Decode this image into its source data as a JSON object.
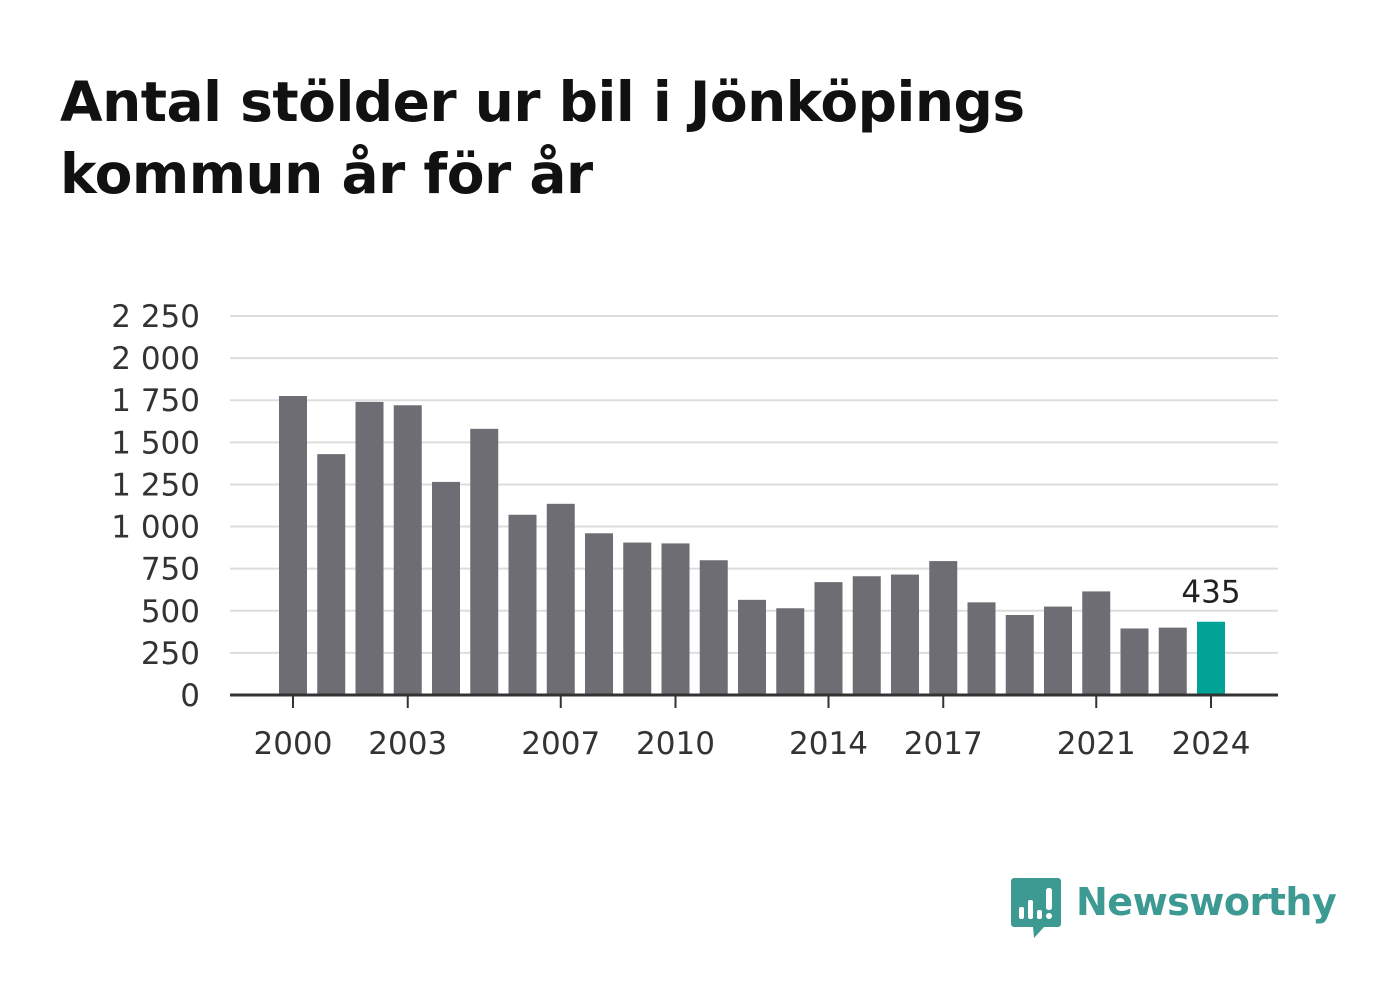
{
  "title": "Antal stölder ur bil i Jönköpings kommun år för år",
  "brand": {
    "name": "Newsworthy",
    "icon": "newsworthy-logo-icon",
    "color": "#3d9a92"
  },
  "colors": {
    "bar": "#6e6d73",
    "highlight": "#00a396",
    "grid": "#dddddd",
    "axis": "#333333"
  },
  "chart_data": {
    "type": "bar",
    "title": "Antal stölder ur bil i Jönköpings kommun år för år",
    "xlabel": "",
    "ylabel": "",
    "categories": [
      "2000",
      "2001",
      "2002",
      "2003",
      "2004",
      "2005",
      "2006",
      "2007",
      "2008",
      "2009",
      "2010",
      "2011",
      "2012",
      "2013",
      "2014",
      "2015",
      "2016",
      "2017",
      "2018",
      "2019",
      "2020",
      "2021",
      "2022",
      "2023",
      "2024"
    ],
    "values": [
      1775,
      1430,
      1740,
      1720,
      1265,
      1580,
      1070,
      1135,
      960,
      905,
      900,
      800,
      565,
      515,
      670,
      705,
      715,
      795,
      550,
      475,
      525,
      615,
      395,
      400,
      435
    ],
    "x_tick_labels": [
      "2000",
      "2003",
      "2007",
      "2010",
      "2014",
      "2017",
      "2021",
      "2024"
    ],
    "y_ticks": [
      0,
      250,
      500,
      750,
      1000,
      1250,
      1500,
      1750,
      2000,
      2250
    ],
    "y_tick_labels": [
      "0",
      "250",
      "500",
      "750",
      "1 000",
      "1 250",
      "1 500",
      "1 750",
      "2 000",
      "2 250"
    ],
    "ylim": [
      0,
      2250
    ],
    "grid": true,
    "highlight_category": "2024",
    "annotations": [
      {
        "category": "2024",
        "text": "435"
      }
    ]
  }
}
